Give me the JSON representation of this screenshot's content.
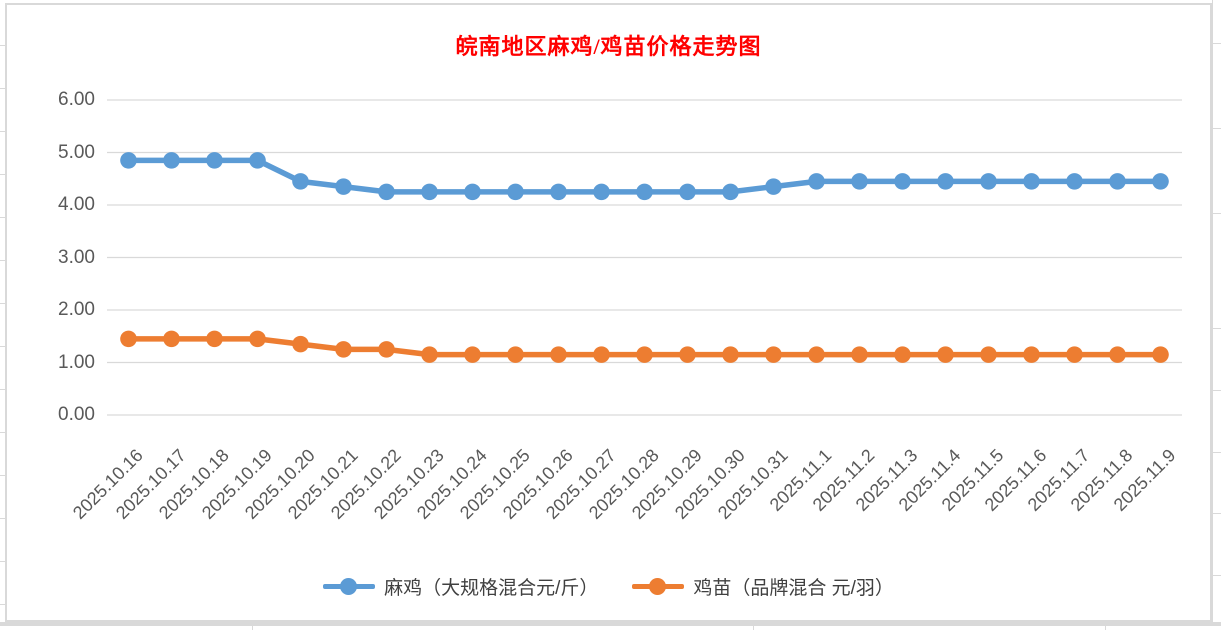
{
  "sheet": {
    "background": "#FFFFFF",
    "grid_color": "#D9D9D9"
  },
  "chart_data": {
    "type": "line",
    "title": "皖南地区麻鸡/鸡苗价格走势图",
    "title_color": "#FF0000",
    "categories": [
      "2025.10.16",
      "2025.10.17",
      "2025.10.18",
      "2025.10.19",
      "2025.10.20",
      "2025.10.21",
      "2025.10.22",
      "2025.10.23",
      "2025.10.24",
      "2025.10.25",
      "2025.10.26",
      "2025.10.27",
      "2025.10.28",
      "2025.10.29",
      "2025.10.30",
      "2025.10.31",
      "2025.11.1",
      "2025.11.2",
      "2025.11.3",
      "2025.11.4",
      "2025.11.5",
      "2025.11.6",
      "2025.11.7",
      "2025.11.8",
      "2025.11.9"
    ],
    "series": [
      {
        "name": "麻鸡（大规格混合元/斤）",
        "color": "#5B9BD5",
        "values": [
          4.85,
          4.85,
          4.85,
          4.85,
          4.45,
          4.35,
          4.25,
          4.25,
          4.25,
          4.25,
          4.25,
          4.25,
          4.25,
          4.25,
          4.25,
          4.35,
          4.45,
          4.45,
          4.45,
          4.45,
          4.45,
          4.45,
          4.45,
          4.45,
          4.45
        ]
      },
      {
        "name": "鸡苗（品牌混合 元/羽）",
        "color": "#ED7D31",
        "values": [
          1.45,
          1.45,
          1.45,
          1.45,
          1.35,
          1.25,
          1.25,
          1.15,
          1.15,
          1.15,
          1.15,
          1.15,
          1.15,
          1.15,
          1.15,
          1.15,
          1.15,
          1.15,
          1.15,
          1.15,
          1.15,
          1.15,
          1.15,
          1.15,
          1.15
        ]
      }
    ],
    "xlabel": "",
    "ylabel": "",
    "ylim": [
      0,
      6
    ],
    "yticks": [
      "6.00",
      "5.00",
      "4.00",
      "3.00",
      "2.00",
      "1.00",
      "0.00"
    ],
    "ytick_values": [
      6,
      5,
      4,
      3,
      2,
      1,
      0
    ],
    "grid": "on",
    "gridline_color": "#D9D9D9",
    "axis_label_color": "#595959",
    "legend_position": "bottom"
  }
}
